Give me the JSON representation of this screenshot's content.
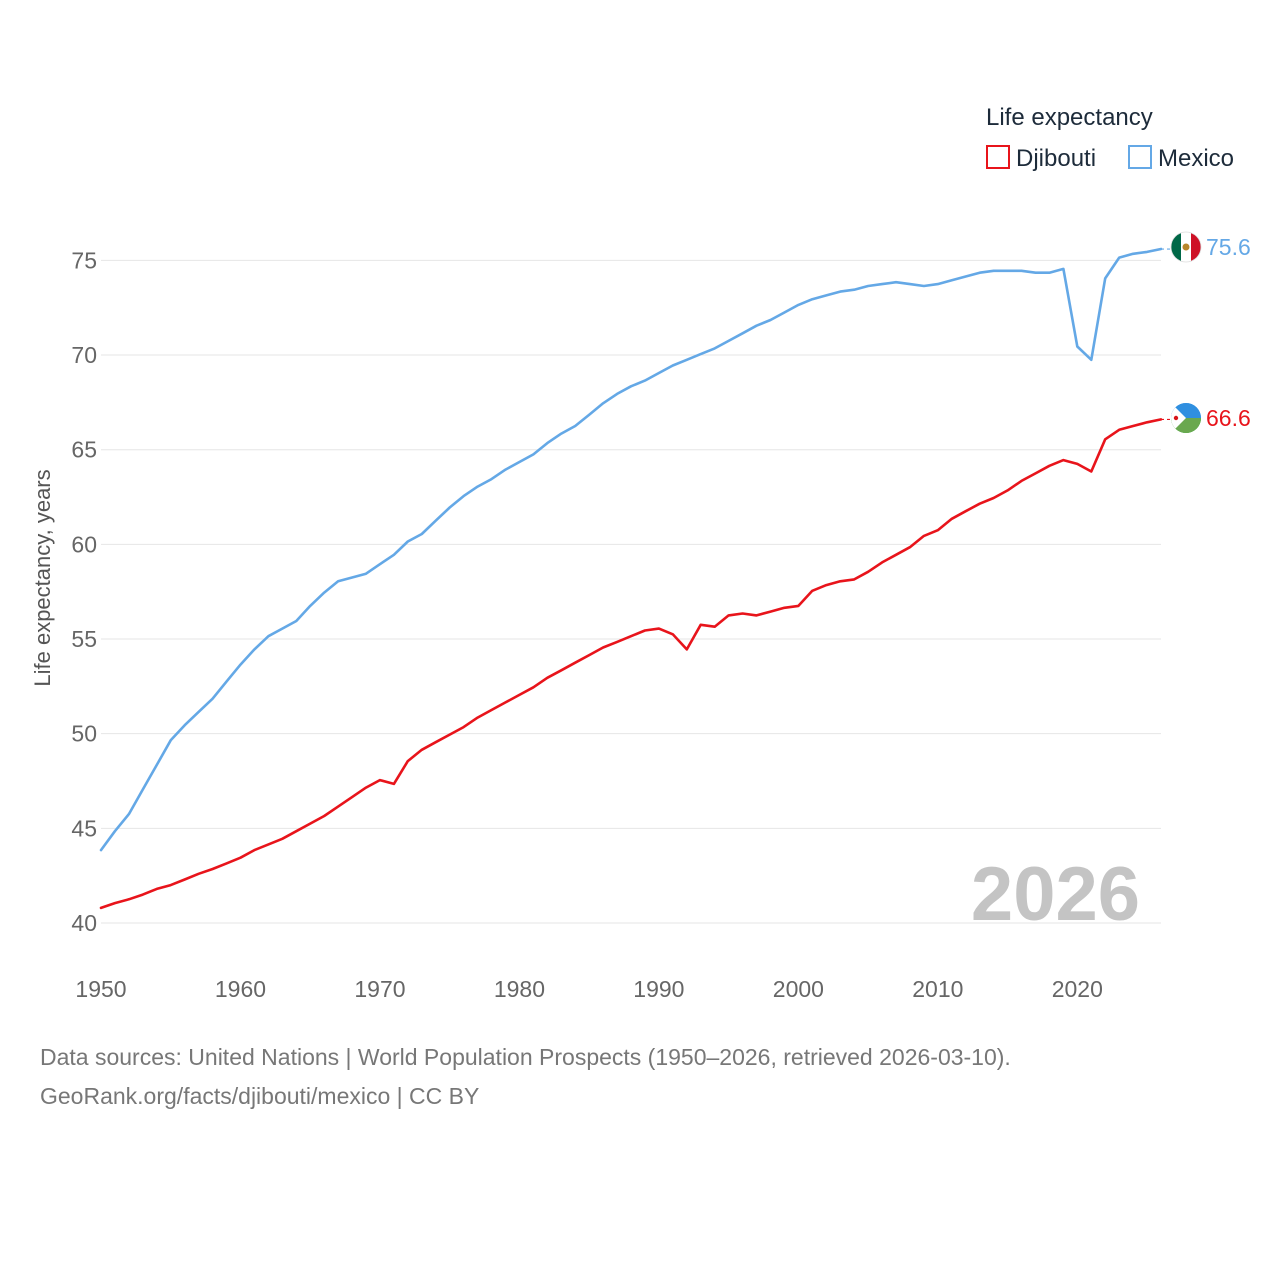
{
  "colors": {
    "Djibouti": "#e8141b",
    "Mexico": "#64a8e6"
  },
  "legend": {
    "title": "Life expectancy",
    "entries": [
      {
        "name": "Djibouti",
        "color": "#e8141b"
      },
      {
        "name": "Mexico",
        "color": "#64a8e6"
      }
    ]
  },
  "watermark_year": "2026",
  "end_labels": {
    "Mexico": "75.6",
    "Djibouti": "66.6"
  },
  "flags": {
    "Mexico": "mexico-flag-icon",
    "Djibouti": "djibouti-flag-icon"
  },
  "footer": {
    "line1": "Data sources: United Nations | World Population Prospects (1950–2026, retrieved 2026-03-10).",
    "line2": "GeoRank.org/facts/djibouti/mexico | CC BY"
  },
  "chart_data": {
    "type": "line",
    "title": "Life expectancy",
    "xlabel": "",
    "ylabel": "Life expectancy, years",
    "xlim": [
      1950,
      2026
    ],
    "ylim": [
      40,
      76.5
    ],
    "xticks": [
      1950,
      1960,
      1970,
      1980,
      1990,
      2000,
      2010,
      2020
    ],
    "yticks": [
      40,
      45,
      50,
      55,
      60,
      65,
      70,
      75
    ],
    "grid": true,
    "legend_position": "top-right",
    "x": [
      1950,
      1951,
      1952,
      1953,
      1954,
      1955,
      1956,
      1957,
      1958,
      1959,
      1960,
      1961,
      1962,
      1963,
      1964,
      1965,
      1966,
      1967,
      1968,
      1969,
      1970,
      1971,
      1972,
      1973,
      1974,
      1975,
      1976,
      1977,
      1978,
      1979,
      1980,
      1981,
      1982,
      1983,
      1984,
      1985,
      1986,
      1987,
      1988,
      1989,
      1990,
      1991,
      1992,
      1993,
      1994,
      1995,
      1996,
      1997,
      1998,
      1999,
      2000,
      2001,
      2002,
      2003,
      2004,
      2005,
      2006,
      2007,
      2008,
      2009,
      2010,
      2011,
      2012,
      2013,
      2014,
      2015,
      2016,
      2017,
      2018,
      2019,
      2020,
      2021,
      2022,
      2023,
      2024,
      2025,
      2026
    ],
    "series": [
      {
        "name": "Djibouti",
        "values": [
          40.8,
          41.05,
          41.25,
          41.5,
          41.8,
          42.0,
          42.3,
          42.6,
          42.85,
          43.15,
          43.45,
          43.85,
          44.15,
          44.45,
          44.85,
          45.25,
          45.65,
          46.15,
          46.65,
          47.15,
          47.55,
          47.35,
          48.55,
          49.15,
          49.55,
          49.95,
          50.35,
          50.85,
          51.25,
          51.65,
          52.05,
          52.45,
          52.95,
          53.35,
          53.75,
          54.15,
          54.55,
          54.85,
          55.15,
          55.45,
          55.55,
          55.25,
          54.45,
          55.75,
          55.65,
          56.25,
          56.35,
          56.25,
          56.45,
          56.65,
          56.75,
          57.55,
          57.85,
          58.05,
          58.15,
          58.55,
          59.05,
          59.45,
          59.85,
          60.45,
          60.75,
          61.35,
          61.75,
          62.15,
          62.45,
          62.85,
          63.35,
          63.75,
          64.15,
          64.45,
          64.25,
          63.85,
          65.55,
          66.05,
          66.25,
          66.45,
          66.6
        ]
      },
      {
        "name": "Mexico",
        "values": [
          43.85,
          44.85,
          45.75,
          47.05,
          48.35,
          49.65,
          50.45,
          51.15,
          51.85,
          52.75,
          53.65,
          54.45,
          55.15,
          55.55,
          55.95,
          56.75,
          57.45,
          58.05,
          58.25,
          58.45,
          58.95,
          59.45,
          60.15,
          60.55,
          61.25,
          61.95,
          62.55,
          63.05,
          63.45,
          63.95,
          64.35,
          64.75,
          65.35,
          65.85,
          66.25,
          66.85,
          67.45,
          67.95,
          68.35,
          68.65,
          69.05,
          69.45,
          69.75,
          70.05,
          70.35,
          70.75,
          71.15,
          71.55,
          71.85,
          72.25,
          72.65,
          72.95,
          73.15,
          73.35,
          73.45,
          73.65,
          73.75,
          73.85,
          73.75,
          73.65,
          73.75,
          73.95,
          74.15,
          74.35,
          74.45,
          74.45,
          74.45,
          74.35,
          74.35,
          74.55,
          70.45,
          69.75,
          74.05,
          75.15,
          75.35,
          75.45,
          75.6
        ]
      }
    ]
  }
}
